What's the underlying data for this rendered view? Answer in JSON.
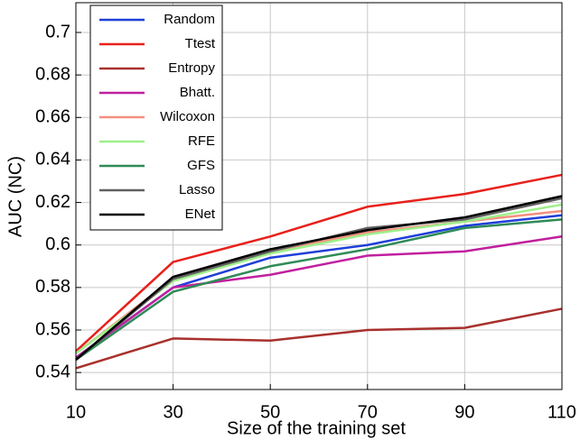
{
  "chart_data": {
    "type": "line",
    "xlabel": "Size of the training set",
    "ylabel": "AUC (NC)",
    "x": [
      10,
      30,
      50,
      70,
      90,
      110
    ],
    "xlim": [
      10,
      110
    ],
    "xticks": [
      10,
      30,
      50,
      70,
      90,
      110
    ],
    "ylim": [
      0.532,
      0.714
    ],
    "yticks": [
      0.54,
      0.56,
      0.58,
      0.6,
      0.62,
      0.64,
      0.66,
      0.68,
      0.7
    ],
    "grid": true,
    "legend": "upper-left",
    "series": [
      {
        "name": "Random",
        "color": "#1f3fd8",
        "values": [
          0.547,
          0.58,
          0.594,
          0.6,
          0.609,
          0.614
        ]
      },
      {
        "name": "Ttest",
        "color": "#e8201a",
        "values": [
          0.55,
          0.592,
          0.604,
          0.618,
          0.624,
          0.633
        ]
      },
      {
        "name": "Entropy",
        "color": "#a8302c",
        "values": [
          0.542,
          0.556,
          0.555,
          0.56,
          0.561,
          0.57
        ]
      },
      {
        "name": "Bhatt.",
        "color": "#c0209e",
        "values": [
          0.547,
          0.58,
          0.586,
          0.595,
          0.597,
          0.604
        ]
      },
      {
        "name": "Wilcoxon",
        "color": "#f4907f",
        "values": [
          0.549,
          0.584,
          0.597,
          0.606,
          0.611,
          0.616
        ]
      },
      {
        "name": "RFE",
        "color": "#9ef08a",
        "values": [
          0.549,
          0.583,
          0.596,
          0.605,
          0.611,
          0.619
        ]
      },
      {
        "name": "GFS",
        "color": "#2e8b57",
        "values": [
          0.546,
          0.578,
          0.59,
          0.598,
          0.608,
          0.612
        ]
      },
      {
        "name": "Lasso",
        "color": "#606060",
        "values": [
          0.546,
          0.584,
          0.597,
          0.608,
          0.612,
          0.622
        ]
      },
      {
        "name": "ENet",
        "color": "#000000",
        "values": [
          0.546,
          0.585,
          0.598,
          0.607,
          0.613,
          0.623
        ]
      }
    ]
  }
}
